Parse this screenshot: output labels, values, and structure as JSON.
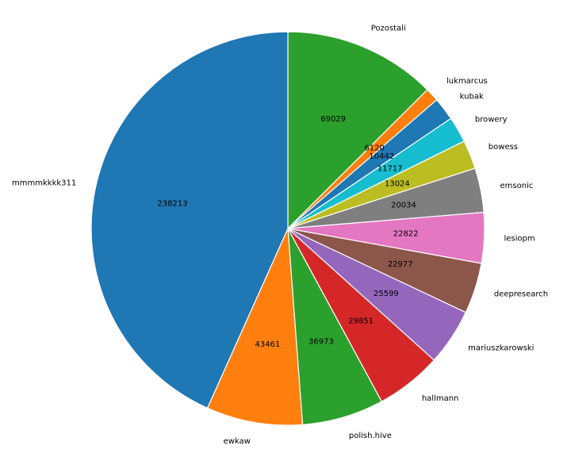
{
  "chart_data": {
    "type": "pie",
    "title": "",
    "categories": [
      "Pozostali",
      "lukmarcus",
      "kubak",
      "browery",
      "bowess",
      "emsonic",
      "lesiopm",
      "deepresearch",
      "mariuszkarowski",
      "hallmann",
      "polish.hive",
      "ewkaw",
      "mmmmkkkk311"
    ],
    "values": [
      69029,
      6120,
      10442,
      11717,
      13024,
      20034,
      22822,
      22977,
      25599,
      29851,
      36973,
      43461,
      238213
    ],
    "colors": [
      "#2ca02c",
      "#ff7f0e",
      "#1f77b4",
      "#17becf",
      "#bcbd22",
      "#7f7f7f",
      "#e377c2",
      "#8c564b",
      "#9467bd",
      "#d62728",
      "#2ca02c",
      "#ff7f0e",
      "#1f77b4"
    ],
    "start_angle": "top",
    "direction": "clockwise",
    "value_labels": "inside",
    "category_labels": "outside",
    "legend": "none"
  }
}
